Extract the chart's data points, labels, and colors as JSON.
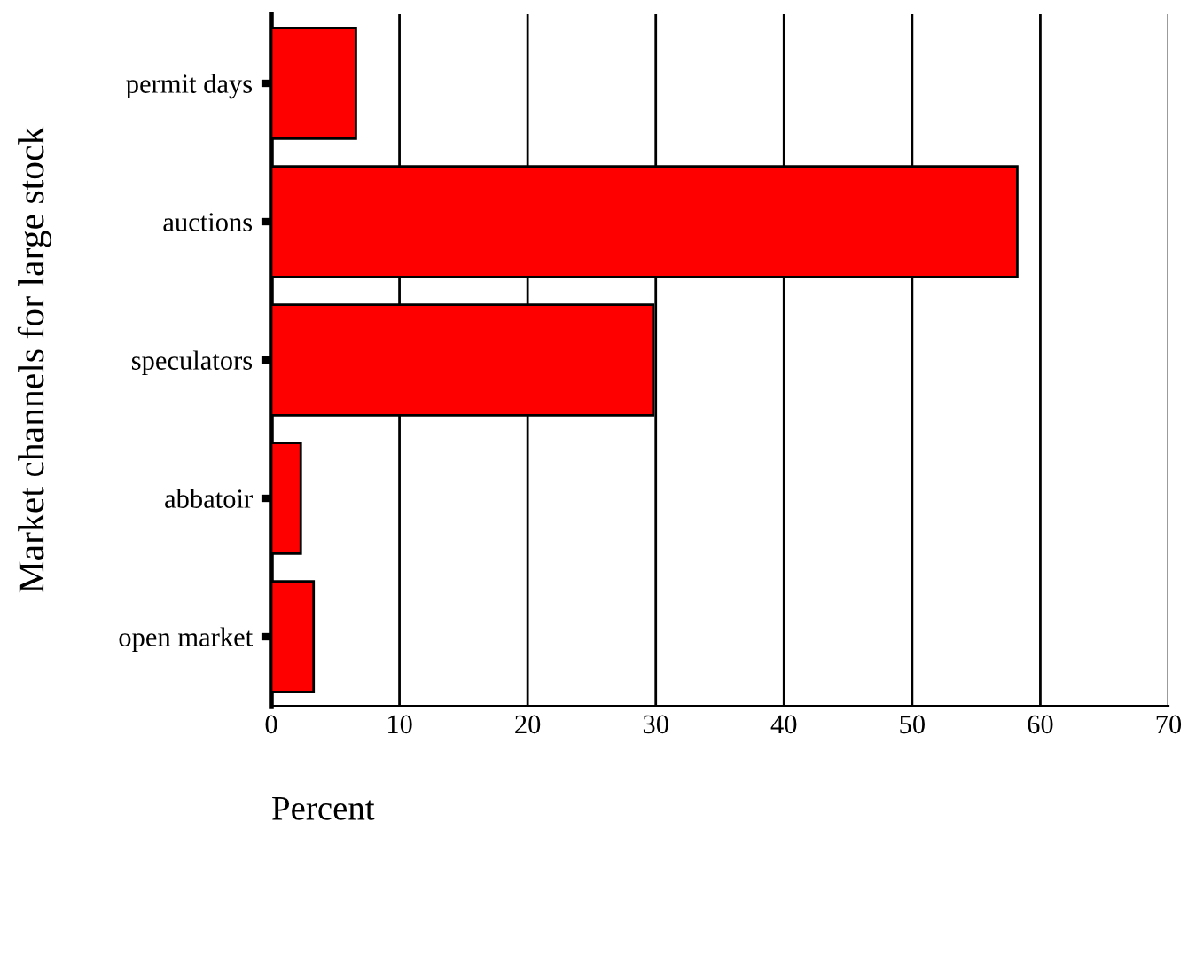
{
  "chart_data": {
    "type": "bar",
    "orientation": "horizontal",
    "xlabel": "Percent",
    "ylabel": "Market channels for large stock",
    "categories": [
      "permit days",
      "auctions",
      "speculators",
      "abbatoir",
      "open market"
    ],
    "values": [
      6.6,
      58.2,
      29.8,
      2.3,
      3.3
    ],
    "color": "#ff0000",
    "xlim": [
      0,
      70
    ],
    "xticks": [
      0,
      10,
      20,
      30,
      40,
      50,
      60,
      70
    ],
    "grid": "x",
    "legend": false
  }
}
